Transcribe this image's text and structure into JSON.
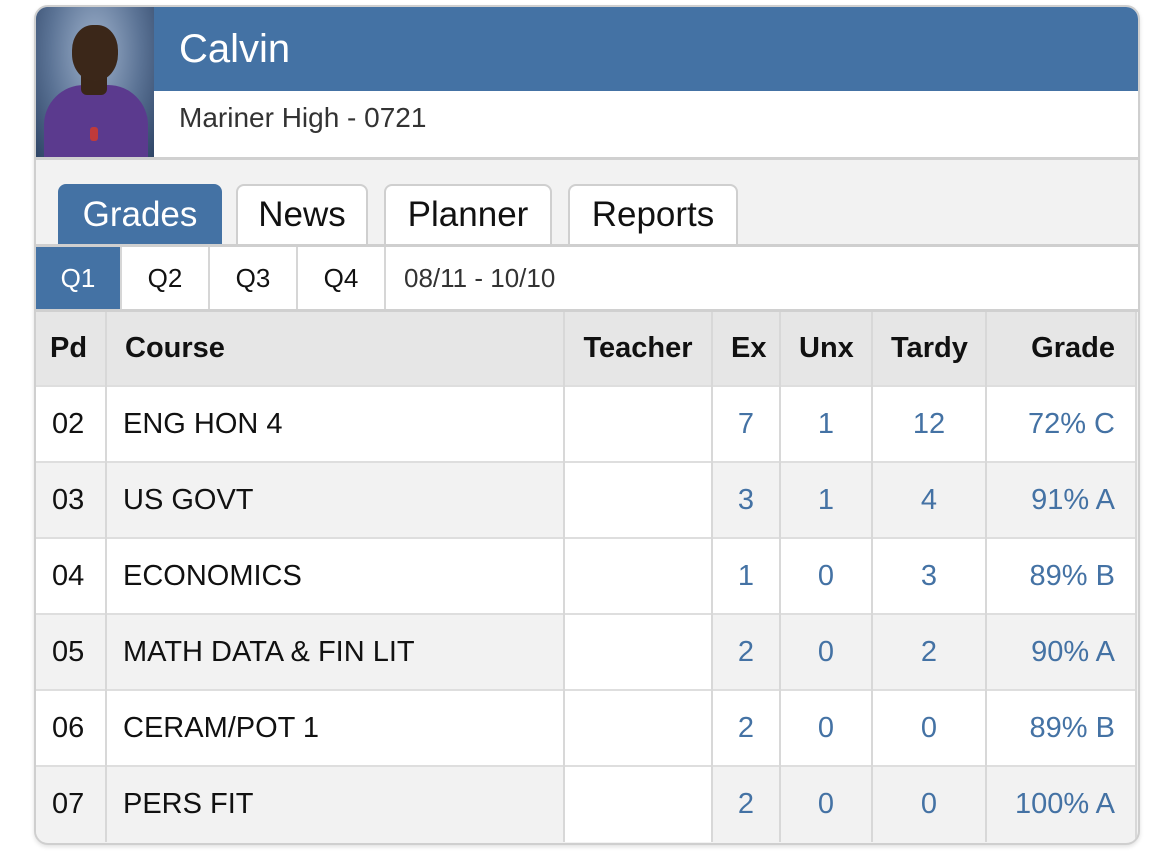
{
  "student": {
    "name": "Calvin",
    "school": "Mariner High - 0721"
  },
  "tabs": [
    {
      "label": "Grades",
      "active": true
    },
    {
      "label": "News",
      "active": false
    },
    {
      "label": "Planner",
      "active": false
    },
    {
      "label": "Reports",
      "active": false
    }
  ],
  "quarters": [
    {
      "label": "Q1",
      "active": true
    },
    {
      "label": "Q2",
      "active": false
    },
    {
      "label": "Q3",
      "active": false
    },
    {
      "label": "Q4",
      "active": false
    }
  ],
  "date_range": "08/11 - 10/10",
  "table": {
    "headers": {
      "pd": "Pd",
      "course": "Course",
      "teacher": "Teacher",
      "ex": "Ex",
      "unx": "Unx",
      "tardy": "Tardy",
      "grade": "Grade"
    },
    "rows": [
      {
        "pd": "02",
        "course": "ENG HON 4",
        "teacher": "",
        "ex": "7",
        "unx": "1",
        "tardy": "12",
        "grade": "72% C"
      },
      {
        "pd": "03",
        "course": "US GOVT",
        "teacher": "",
        "ex": "3",
        "unx": "1",
        "tardy": "4",
        "grade": "91% A"
      },
      {
        "pd": "04",
        "course": "ECONOMICS",
        "teacher": "",
        "ex": "1",
        "unx": "0",
        "tardy": "3",
        "grade": "89% B"
      },
      {
        "pd": "05",
        "course": "MATH DATA & FIN LIT",
        "teacher": "",
        "ex": "2",
        "unx": "0",
        "tardy": "2",
        "grade": "90% A"
      },
      {
        "pd": "06",
        "course": "CERAM/POT 1",
        "teacher": "",
        "ex": "2",
        "unx": "0",
        "tardy": "0",
        "grade": "89% B"
      },
      {
        "pd": "07",
        "course": "PERS FIT",
        "teacher": "",
        "ex": "2",
        "unx": "0",
        "tardy": "0",
        "grade": "100% A"
      }
    ]
  },
  "colors": {
    "accent": "#4472a4",
    "header_bg": "#e6e6e6"
  }
}
